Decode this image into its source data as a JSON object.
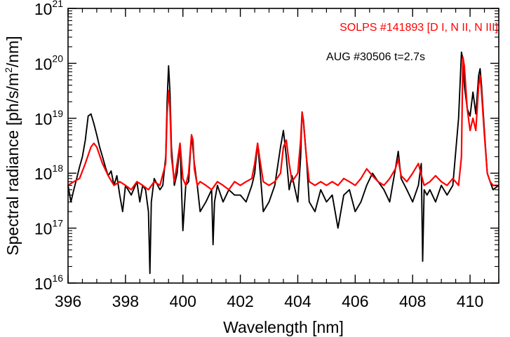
{
  "chart_data": {
    "type": "line",
    "xlabel": "Wavelength [nm]",
    "ylabel_main": "Spectral radiance [ph/s/m",
    "ylabel_sup": "2",
    "ylabel_end": "/nm]",
    "xlim": [
      396,
      411
    ],
    "ylim": [
      1e+16,
      1e+21
    ],
    "yscale": "log",
    "grid": false,
    "legend_position": "top-right",
    "x_ticks": [
      {
        "value": 396,
        "label": "396"
      },
      {
        "value": 398,
        "label": "398"
      },
      {
        "value": 400,
        "label": "400"
      },
      {
        "value": 402,
        "label": "402"
      },
      {
        "value": 404,
        "label": "404"
      },
      {
        "value": 406,
        "label": "406"
      },
      {
        "value": 408,
        "label": "408"
      },
      {
        "value": 410,
        "label": "410"
      }
    ],
    "y_ticks": [
      {
        "value": 1e+16,
        "base": "10",
        "exp": "16"
      },
      {
        "value": 1e+17,
        "base": "10",
        "exp": "17"
      },
      {
        "value": 1e+18,
        "base": "10",
        "exp": "18"
      },
      {
        "value": 1e+19,
        "base": "10",
        "exp": "19"
      },
      {
        "value": 1e+20,
        "base": "10",
        "exp": "20"
      },
      {
        "value": 1e+21,
        "base": "10",
        "exp": "21"
      }
    ],
    "series": [
      {
        "name": "AUG #30506 t=2.7s",
        "color": "#000000",
        "x": [
          396.0,
          396.1,
          396.2,
          396.3,
          396.4,
          396.5,
          396.6,
          396.7,
          396.8,
          396.9,
          397.0,
          397.1,
          397.2,
          397.3,
          397.4,
          397.5,
          397.6,
          397.7,
          397.8,
          397.9,
          398.0,
          398.2,
          398.4,
          398.5,
          398.6,
          398.7,
          398.8,
          398.85,
          398.9,
          399.0,
          399.2,
          399.3,
          399.4,
          399.45,
          399.5,
          399.55,
          399.6,
          399.7,
          399.8,
          399.9,
          400.0,
          400.1,
          400.2,
          400.3,
          400.4,
          400.5,
          400.6,
          400.8,
          401.0,
          401.05,
          401.1,
          401.2,
          401.4,
          401.6,
          401.8,
          402.0,
          402.2,
          402.4,
          402.5,
          402.6,
          402.7,
          402.8,
          403.0,
          403.2,
          403.4,
          403.5,
          403.6,
          403.7,
          403.8,
          404.0,
          404.1,
          404.15,
          404.2,
          404.3,
          404.4,
          404.6,
          404.8,
          405.0,
          405.2,
          405.4,
          405.6,
          405.8,
          406.0,
          406.2,
          406.4,
          406.6,
          406.8,
          407.0,
          407.2,
          407.4,
          407.5,
          407.6,
          407.8,
          408.0,
          408.2,
          408.3,
          408.35,
          408.4,
          408.5,
          408.6,
          408.8,
          409.0,
          409.2,
          409.4,
          409.6,
          409.7,
          409.75,
          409.8,
          409.9,
          410.0,
          410.1,
          410.2,
          410.3,
          410.35,
          410.4,
          410.5,
          410.6,
          410.7,
          410.8,
          411.0
        ],
        "y": [
          6e+17,
          3e+17,
          5e+17,
          8e+17,
          1.3e+18,
          2e+18,
          4e+18,
          1.1e+19,
          1.2e+19,
          8e+18,
          5e+18,
          3e+18,
          2e+18,
          1.3e+18,
          9e+17,
          1.1e+18,
          6e+17,
          9e+17,
          4e+17,
          2e+17,
          6e+17,
          4e+17,
          7e+17,
          3e+17,
          6e+17,
          5e+17,
          2e+17,
          1.5e+16,
          3e+17,
          8e+17,
          5e+17,
          6e+17,
          2e+18,
          2e+19,
          9e+19,
          3e+19,
          3e+18,
          6e+17,
          1e+18,
          3.5e+18,
          9e+16,
          6e+17,
          7e+17,
          5e+18,
          1.5e+18,
          6e+17,
          2e+17,
          3e+17,
          5e+17,
          5e+16,
          3e+17,
          6e+17,
          3e+17,
          5e+17,
          4e+17,
          4e+17,
          3e+17,
          6e+17,
          1e+18,
          3.5e+18,
          9e+17,
          2e+17,
          3e+17,
          6e+17,
          3e+18,
          6e+18,
          2e+18,
          5e+17,
          9e+17,
          3e+17,
          2e+18,
          1.3e+19,
          9e+18,
          2e+18,
          3e+17,
          2e+17,
          5e+17,
          3e+17,
          4e+17,
          1e+17,
          4e+17,
          5e+17,
          2e+17,
          3e+17,
          6e+17,
          1e+18,
          7e+17,
          5e+17,
          3e+17,
          1.2e+18,
          2.5e+18,
          8e+17,
          5e+17,
          3e+17,
          6e+17,
          1.5e+18,
          2.5e+16,
          5e+17,
          4e+17,
          5e+17,
          3e+17,
          6e+17,
          4e+17,
          6e+17,
          1e+19,
          1.6e+20,
          1.2e+20,
          4e+19,
          1.5e+19,
          1.1e+19,
          3e+19,
          1.2e+19,
          6e+19,
          8e+19,
          4e+19,
          6e+18,
          1e+18,
          7e+17,
          5e+17,
          6e+17
        ]
      },
      {
        "name": "SOLPS #141893 [D I, N II, N III]",
        "color": "#ff0000",
        "x": [
          396.0,
          396.2,
          396.4,
          396.6,
          396.8,
          396.9,
          397.0,
          397.2,
          397.4,
          397.6,
          397.8,
          398.0,
          398.2,
          398.4,
          398.6,
          398.8,
          399.0,
          399.2,
          399.4,
          399.45,
          399.5,
          399.55,
          399.6,
          399.7,
          399.8,
          399.9,
          400.0,
          400.1,
          400.2,
          400.3,
          400.35,
          400.4,
          400.5,
          400.6,
          400.8,
          401.0,
          401.2,
          401.4,
          401.6,
          401.8,
          402.0,
          402.2,
          402.4,
          402.5,
          402.6,
          402.7,
          402.8,
          403.0,
          403.2,
          403.4,
          403.5,
          403.6,
          403.7,
          403.8,
          404.0,
          404.1,
          404.15,
          404.2,
          404.3,
          404.4,
          404.6,
          404.8,
          405.0,
          405.2,
          405.4,
          405.6,
          405.8,
          406.0,
          406.2,
          406.4,
          406.6,
          406.8,
          407.0,
          407.2,
          407.4,
          407.5,
          407.6,
          407.8,
          408.0,
          408.2,
          408.4,
          408.6,
          408.8,
          409.0,
          409.2,
          409.4,
          409.6,
          409.7,
          409.75,
          409.8,
          409.9,
          410.0,
          410.1,
          410.2,
          410.3,
          410.35,
          410.4,
          410.5,
          410.6,
          410.7,
          410.8,
          411.0
        ],
        "y": [
          6e+17,
          7e+17,
          8e+17,
          1.5e+18,
          3e+18,
          3.5e+18,
          3e+18,
          1.5e+18,
          9e+17,
          6e+17,
          7e+17,
          6e+17,
          5e+17,
          7e+17,
          6e+17,
          5e+17,
          7e+17,
          6e+17,
          1.5e+18,
          1.2e+19,
          3.2e+19,
          1.5e+19,
          2e+18,
          7e+17,
          1.5e+18,
          3.5e+18,
          8e+17,
          6e+17,
          1e+18,
          5e+18,
          4e+18,
          1.2e+18,
          6e+17,
          7e+17,
          6e+17,
          5e+17,
          7e+17,
          6e+17,
          5e+17,
          7e+17,
          6e+17,
          7e+17,
          8e+17,
          1.5e+18,
          3.5e+18,
          1.5e+18,
          7e+17,
          6e+17,
          7e+17,
          1e+18,
          3e+18,
          4e+18,
          1.5e+18,
          7e+17,
          1e+18,
          4e+18,
          1.3e+19,
          8e+18,
          2e+18,
          7e+17,
          6e+17,
          7e+17,
          6e+17,
          7e+17,
          6e+17,
          8e+17,
          7e+17,
          6e+17,
          8e+17,
          1.2e+18,
          9e+17,
          7e+17,
          6e+17,
          8e+17,
          1.2e+18,
          1.8e+18,
          9e+17,
          7e+17,
          1e+18,
          1.5e+18,
          6e+17,
          7e+17,
          9e+17,
          7e+17,
          6e+17,
          8e+17,
          6e+17,
          2e+18,
          1.3e+20,
          9e+19,
          1.5e+19,
          6e+18,
          1e+19,
          6e+18,
          4e+19,
          6e+19,
          3e+19,
          5e+18,
          1e+18,
          7e+17,
          6e+17,
          6e+17
        ]
      }
    ]
  }
}
